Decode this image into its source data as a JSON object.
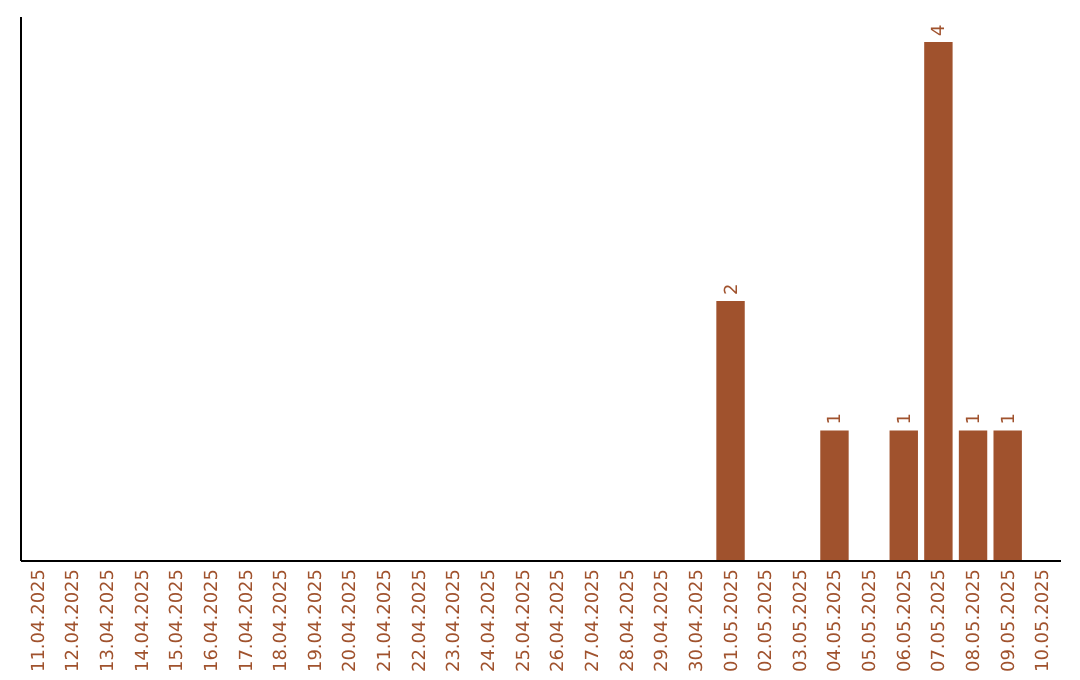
{
  "chart_data": {
    "type": "bar",
    "categories": [
      "11.04.2025",
      "12.04.2025",
      "13.04.2025",
      "14.04.2025",
      "15.04.2025",
      "16.04.2025",
      "17.04.2025",
      "18.04.2025",
      "19.04.2025",
      "20.04.2025",
      "21.04.2025",
      "22.04.2025",
      "23.04.2025",
      "24.04.2025",
      "25.04.2025",
      "26.04.2025",
      "27.04.2025",
      "28.04.2025",
      "29.04.2025",
      "30.04.2025",
      "01.05.2025",
      "02.05.2025",
      "03.05.2025",
      "04.05.2025",
      "05.05.2025",
      "06.05.2025",
      "07.05.2025",
      "08.05.2025",
      "09.05.2025",
      "10.05.2025"
    ],
    "values": [
      null,
      null,
      null,
      null,
      null,
      null,
      null,
      null,
      null,
      null,
      null,
      null,
      null,
      null,
      null,
      null,
      null,
      null,
      null,
      null,
      2,
      null,
      null,
      1,
      null,
      1,
      4,
      1,
      1,
      null
    ],
    "value_labels": [
      null,
      null,
      null,
      null,
      null,
      null,
      null,
      null,
      null,
      null,
      null,
      null,
      null,
      null,
      null,
      null,
      null,
      null,
      null,
      null,
      "2",
      null,
      null,
      "1",
      null,
      "1",
      "4",
      "1",
      "1",
      null
    ],
    "color": "#a0522d",
    "ylim": [
      0,
      4.2
    ],
    "tick_labels": "x",
    "grid": false
  }
}
